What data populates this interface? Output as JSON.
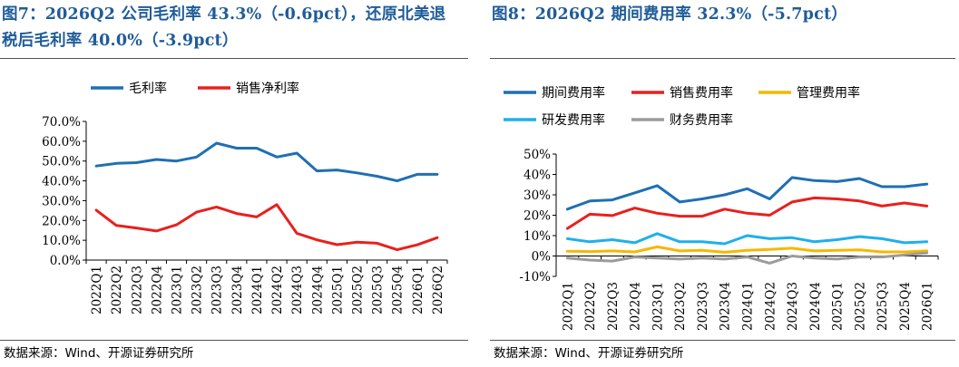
{
  "figures": [
    {
      "title_lines": [
        "图7：2026Q2 公司毛利率 43.3%（-0.6pct），还原北美退",
        "税后毛利率 40.0%（-3.9pct）"
      ],
      "source": "数据来源：Wind、开源证券研究所"
    },
    {
      "title_lines": [
        "图8：2026Q2 期间费用率 32.3%（-5.7pct）"
      ],
      "source": "数据来源：Wind、开源证券研究所"
    }
  ],
  "chart_data": [
    {
      "type": "line",
      "title": "",
      "xlabel": "",
      "ylabel": "",
      "x": [
        "2022Q1",
        "2022Q2",
        "2022Q3",
        "2022Q4",
        "2023Q1",
        "2023Q2",
        "2023Q3",
        "2023Q4",
        "2024Q1",
        "2024Q2",
        "2024Q3",
        "2024Q4",
        "2025Q1",
        "2025Q2",
        "2025Q3",
        "2025Q4",
        "2026Q1",
        "2026Q2"
      ],
      "ylim": [
        0,
        70
      ],
      "yticks": [
        "0.0%",
        "10.0%",
        "20.0%",
        "30.0%",
        "40.0%",
        "50.0%",
        "60.0%",
        "70.0%"
      ],
      "yticks_values": [
        0,
        10,
        20,
        30,
        40,
        50,
        60,
        70
      ],
      "grid": false,
      "legend_position": "top",
      "series": [
        {
          "name": "毛利率",
          "color": "#1f6fb4",
          "values": [
            47.5,
            48.8,
            49.2,
            50.8,
            50.0,
            52.0,
            59.0,
            56.5,
            56.5,
            52.0,
            54.0,
            45.0,
            45.5,
            44.0,
            42.3,
            40.0,
            43.3,
            43.3
          ]
        },
        {
          "name": "销售净利率",
          "color": "#e8201d",
          "values": [
            25.2,
            17.5,
            16.2,
            14.7,
            17.8,
            24.2,
            26.8,
            23.5,
            21.8,
            28.0,
            13.5,
            10.2,
            7.8,
            9.0,
            8.5,
            5.2,
            7.7,
            11.3
          ]
        }
      ]
    },
    {
      "type": "line",
      "title": "",
      "xlabel": "",
      "ylabel": "",
      "x": [
        "2022Q1",
        "2022Q2",
        "2022Q3",
        "2022Q4",
        "2023Q1",
        "2023Q2",
        "2023Q3",
        "2023Q4",
        "2024Q1",
        "2024Q2",
        "2024Q3",
        "2024Q4",
        "2025Q1",
        "2025Q2",
        "2025Q3",
        "2025Q4",
        "2026Q1"
      ],
      "ylim": [
        -10,
        50
      ],
      "yticks": [
        "-10%",
        "0%",
        "10%",
        "20%",
        "30%",
        "40%",
        "50%"
      ],
      "yticks_values": [
        -10,
        0,
        10,
        20,
        30,
        40,
        50
      ],
      "grid": false,
      "legend_position": "top",
      "series": [
        {
          "name": "期间费用率",
          "color": "#1f6fb4",
          "values": [
            23.0,
            27.0,
            27.5,
            31.0,
            34.5,
            26.5,
            28.0,
            30.0,
            33.0,
            28.0,
            38.5,
            37.0,
            36.5,
            38.0,
            34.0,
            34.0,
            35.3
          ]
        },
        {
          "name": "销售费用率",
          "color": "#e8201d",
          "values": [
            13.5,
            20.5,
            19.8,
            23.5,
            21.0,
            19.5,
            19.5,
            23.0,
            21.0,
            20.0,
            26.5,
            28.5,
            28.0,
            27.0,
            24.5,
            26.0,
            24.5
          ]
        },
        {
          "name": "管理费用率",
          "color": "#f5b800",
          "values": [
            2.3,
            2.2,
            2.5,
            2.0,
            4.5,
            2.5,
            2.8,
            1.8,
            2.8,
            3.2,
            3.8,
            2.5,
            2.8,
            3.0,
            2.0,
            2.0,
            2.5
          ]
        },
        {
          "name": "研发费用率",
          "color": "#1fb0ea",
          "values": [
            8.5,
            7.0,
            8.0,
            6.5,
            11.0,
            7.0,
            7.0,
            6.0,
            10.0,
            8.5,
            9.0,
            7.0,
            8.0,
            9.5,
            8.5,
            6.5,
            7.0
          ]
        },
        {
          "name": "财务费用率",
          "color": "#9b9b9b",
          "values": [
            -1.0,
            -2.0,
            -2.5,
            -0.5,
            -1.0,
            -1.5,
            -1.0,
            -1.5,
            -0.5,
            -3.5,
            0.0,
            -1.0,
            -1.5,
            -0.5,
            -0.5,
            0.5,
            1.5
          ]
        }
      ]
    }
  ]
}
